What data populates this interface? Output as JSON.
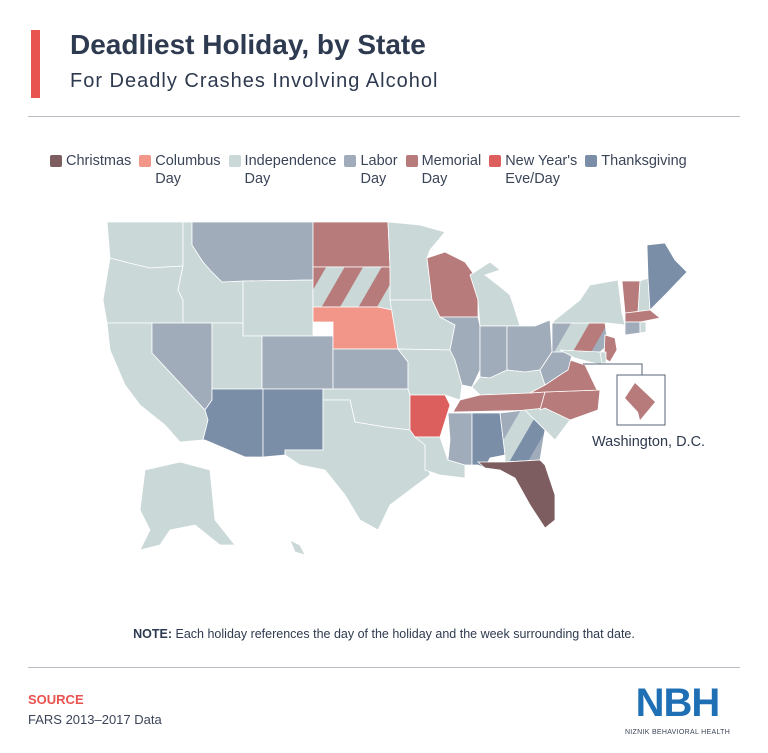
{
  "header": {
    "title": "Deadliest Holiday, by State",
    "subtitle": "For Deadly Crashes Involving Alcohol"
  },
  "legend": [
    {
      "key": "christmas",
      "line1": "Christmas",
      "line2": "",
      "color": "#7d5d5f"
    },
    {
      "key": "columbus",
      "line1": "Columbus",
      "line2": "Day",
      "color": "#f2968a"
    },
    {
      "key": "independence",
      "line1": "Independence",
      "line2": "Day",
      "color": "#cad8d8"
    },
    {
      "key": "labor",
      "line1": "Labor",
      "line2": "Day",
      "color": "#a1acbb"
    },
    {
      "key": "memorial",
      "line1": "Memorial",
      "line2": "Day",
      "color": "#b87b7b"
    },
    {
      "key": "newyear",
      "line1": "New Year's",
      "line2": "Eve/Day",
      "color": "#dc5e5d"
    },
    {
      "key": "thanksgiving",
      "line1": "Thanksgiving",
      "line2": "",
      "color": "#7a8ea7"
    }
  ],
  "states": {
    "WA": [
      "independence"
    ],
    "OR": [
      "independence"
    ],
    "CA": [
      "independence"
    ],
    "ID": [
      "independence"
    ],
    "NV": [
      "labor"
    ],
    "MT": [
      "labor"
    ],
    "WY": [
      "independence"
    ],
    "UT": [
      "independence"
    ],
    "CO": [
      "labor"
    ],
    "AZ": [
      "thanksgiving"
    ],
    "NM": [
      "thanksgiving"
    ],
    "ND": [
      "memorial"
    ],
    "SD": [
      "independence",
      "memorial"
    ],
    "NE": [
      "columbus"
    ],
    "KS": [
      "labor"
    ],
    "OK": [
      "independence"
    ],
    "TX": [
      "independence"
    ],
    "MN": [
      "independence"
    ],
    "IA": [
      "independence"
    ],
    "MO": [
      "independence"
    ],
    "AR": [
      "newyear"
    ],
    "LA": [
      "independence"
    ],
    "WI": [
      "memorial"
    ],
    "IL": [
      "labor"
    ],
    "MI": [
      "independence"
    ],
    "IN": [
      "labor"
    ],
    "OH": [
      "labor"
    ],
    "KY": [
      "independence"
    ],
    "TN": [
      "memorial"
    ],
    "MS": [
      "labor"
    ],
    "AL": [
      "thanksgiving"
    ],
    "GA": [
      "thanksgiving",
      "labor",
      "independence"
    ],
    "FL": [
      "christmas"
    ],
    "SC": [
      "independence"
    ],
    "NC": [
      "memorial"
    ],
    "VA": [
      "memorial"
    ],
    "WV": [
      "labor"
    ],
    "PA": [
      "memorial",
      "labor",
      "independence"
    ],
    "NY": [
      "independence"
    ],
    "NJ": [
      "memorial"
    ],
    "DE": [
      "independence"
    ],
    "MD": [
      "independence"
    ],
    "CT": [
      "labor"
    ],
    "RI": [
      "independence"
    ],
    "MA": [
      "memorial"
    ],
    "VT": [
      "memorial"
    ],
    "NH": [
      "independence"
    ],
    "ME": [
      "thanksgiving"
    ],
    "AK": [
      "independence"
    ],
    "HI": [
      "independence"
    ],
    "DC": [
      "memorial"
    ]
  },
  "dc_label": "Washington, D.C.",
  "note": {
    "label": "NOTE:",
    "text": "Each holiday references the day of the holiday and the week surrounding that date."
  },
  "source": {
    "label": "SOURCE",
    "text": "FARS 2013–2017 Data"
  },
  "logo": {
    "letters": "NBH",
    "name": "NIZNIK BEHAVIORAL HEALTH",
    "color": "#1f6fb5"
  },
  "accent_color": "#e8524f"
}
